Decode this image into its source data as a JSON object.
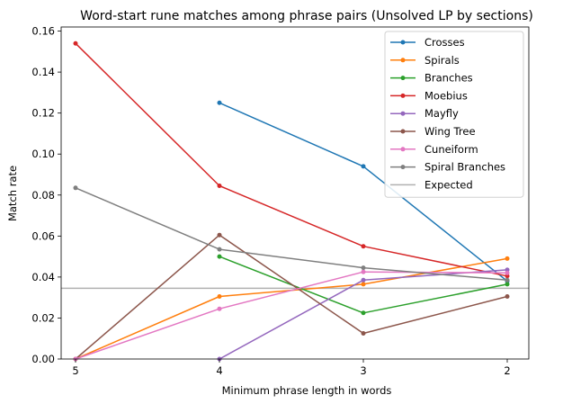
{
  "chart_data": {
    "type": "line",
    "title": "Word-start rune matches among phrase pairs (Unsolved LP by sections)",
    "xlabel": "Minimum phrase length in words",
    "ylabel": "Match rate",
    "x": [
      5,
      4,
      3,
      2
    ],
    "x_tick_labels": [
      "5",
      "4",
      "3",
      "2"
    ],
    "x_reversed": true,
    "xlim": [
      5.1,
      1.85
    ],
    "ylim": [
      0,
      0.162
    ],
    "y_ticks": [
      0,
      0.02,
      0.04,
      0.06,
      0.08,
      0.1,
      0.12,
      0.14,
      0.16
    ],
    "y_tick_labels": [
      "0.00",
      "0.02",
      "0.04",
      "0.06",
      "0.08",
      "0.10",
      "0.12",
      "0.14",
      "0.16"
    ],
    "grid": false,
    "legend_position": "top-right",
    "series": [
      {
        "name": "Crosses",
        "color": "#1f77b4",
        "points": [
          [
            4,
            0.125
          ],
          [
            3,
            0.094
          ],
          [
            2,
            0.038
          ]
        ]
      },
      {
        "name": "Spirals",
        "color": "#ff7f0e",
        "points": [
          [
            5,
            0.0
          ],
          [
            4,
            0.0305
          ],
          [
            3,
            0.0365
          ],
          [
            2,
            0.049
          ]
        ]
      },
      {
        "name": "Branches",
        "color": "#2ca02c",
        "points": [
          [
            4,
            0.05
          ],
          [
            3,
            0.0225
          ],
          [
            2,
            0.0365
          ]
        ]
      },
      {
        "name": "Moebius",
        "color": "#d62728",
        "points": [
          [
            5,
            0.154
          ],
          [
            4,
            0.0845
          ],
          [
            3,
            0.055
          ],
          [
            2,
            0.0405
          ]
        ]
      },
      {
        "name": "Mayfly",
        "color": "#9467bd",
        "points": [
          [
            4,
            0.0
          ],
          [
            3,
            0.0385
          ],
          [
            2,
            0.0435
          ]
        ]
      },
      {
        "name": "Wing Tree",
        "color": "#8c564b",
        "points": [
          [
            5,
            0.0
          ],
          [
            4,
            0.0605
          ],
          [
            3,
            0.0125
          ],
          [
            2,
            0.0305
          ]
        ]
      },
      {
        "name": "Cuneiform",
        "color": "#e377c2",
        "points": [
          [
            5,
            0.0
          ],
          [
            4,
            0.0245
          ],
          [
            3,
            0.0425
          ],
          [
            2,
            0.042
          ]
        ]
      },
      {
        "name": "Spiral Branches",
        "color": "#7f7f7f",
        "points": [
          [
            5,
            0.0835
          ],
          [
            4,
            0.0535
          ],
          [
            3,
            0.0445
          ],
          [
            2,
            0.0385
          ]
        ]
      }
    ],
    "reference_line": {
      "name": "Expected",
      "value": 0.0345,
      "color": "#b0b0b0"
    }
  }
}
